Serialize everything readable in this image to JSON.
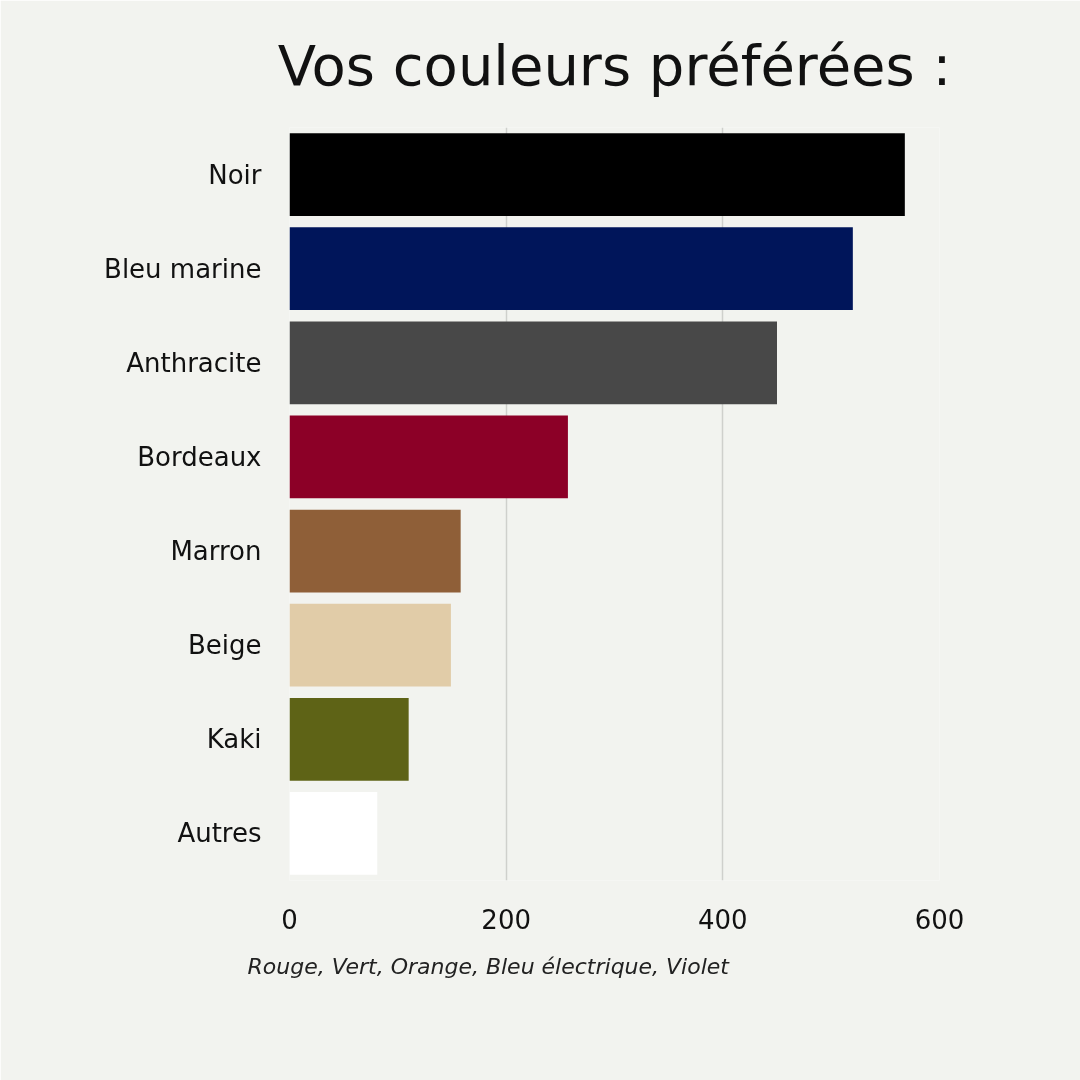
{
  "chart_data": {
    "type": "bar",
    "orientation": "horizontal",
    "title": "Vos couleurs préférées :",
    "categories": [
      "Noir",
      "Bleu marine",
      "Anthracite",
      "Bordeaux",
      "Marron",
      "Beige",
      "Kaki",
      "Autres"
    ],
    "values": [
      568,
      520,
      450,
      257,
      158,
      149,
      110,
      81
    ],
    "colors": [
      "#000000",
      "#00155a",
      "#484848",
      "#8c0027",
      "#8f5f38",
      "#e1cca8",
      "#5e6316",
      "#ffffff"
    ],
    "xlim": [
      0,
      600
    ],
    "xticks": [
      0,
      200,
      400,
      600
    ],
    "grid": "x",
    "annotations": [
      "Rouge, Vert, Orange, Bleu électrique, Violet"
    ]
  }
}
